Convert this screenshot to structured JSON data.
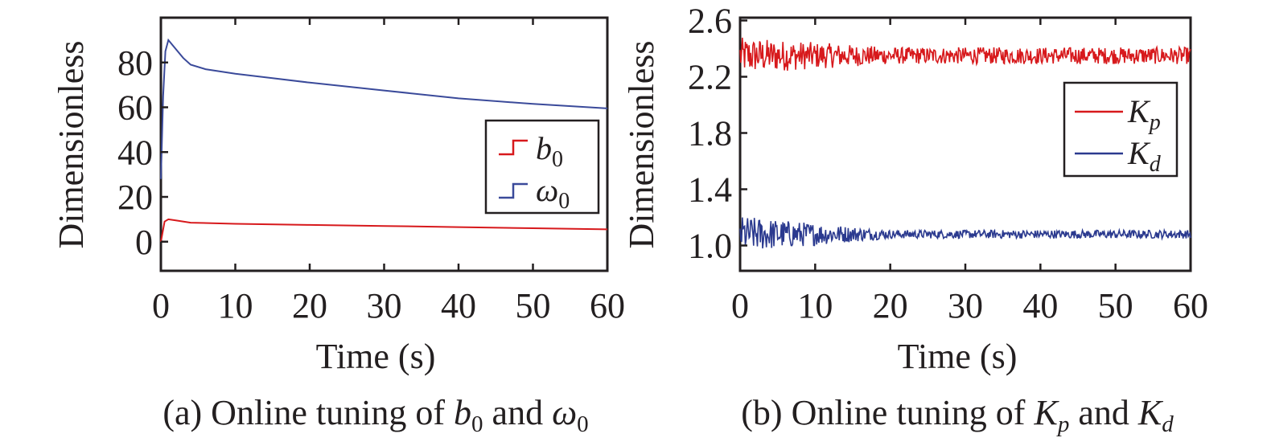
{
  "chart_data": [
    {
      "type": "line",
      "id": "a",
      "caption": {
        "prefix": "(a) Online tuning of ",
        "sym1": "b",
        "sub1": "0",
        "mid": " and ",
        "sym2": "ω",
        "sub2": "0"
      },
      "xlabel": "Time (s)",
      "ylabel": "Dimensionless",
      "xlim": [
        0,
        60
      ],
      "ylim": [
        -13,
        100
      ],
      "xticks": [
        0,
        10,
        20,
        30,
        40,
        50,
        60
      ],
      "yticks": [
        0,
        20,
        40,
        60,
        80
      ],
      "legend_position": "center-right",
      "series": [
        {
          "name": "b",
          "sub": "0",
          "color": "#d7191c",
          "x": [
            0,
            0.5,
            1,
            2,
            4,
            10,
            20,
            30,
            40,
            50,
            60
          ],
          "y": [
            0,
            9,
            10,
            9.5,
            8.5,
            8,
            7.5,
            7,
            6.5,
            6,
            5.5
          ]
        },
        {
          "name": "ω",
          "sub": "0",
          "color": "#3a4a9a",
          "x": [
            0,
            0.3,
            0.6,
            1,
            2,
            3,
            4,
            6,
            10,
            15,
            20,
            30,
            40,
            50,
            60
          ],
          "y": [
            28,
            65,
            85,
            90,
            86,
            82,
            79,
            77,
            75,
            73,
            71,
            67.5,
            64,
            61.5,
            59.5
          ]
        }
      ]
    },
    {
      "type": "line",
      "id": "b",
      "caption": {
        "prefix": "(b) Online tuning of ",
        "sym1": "K",
        "sub1": "p",
        "mid": " and ",
        "sym2": "K",
        "sub2": "d"
      },
      "xlabel": "Time (s)",
      "ylabel": "Dimensionless",
      "xlim": [
        0,
        60
      ],
      "ylim": [
        0.82,
        2.62
      ],
      "xticks": [
        0,
        10,
        20,
        30,
        40,
        50,
        60
      ],
      "yticks": [
        "1.0",
        "1.4",
        "1.8",
        "2.2",
        "2.6"
      ],
      "legend_position": "center-right",
      "series": [
        {
          "name": "K",
          "sub": "p",
          "color": "#d7191c",
          "mean": 2.35,
          "amp_start": 0.13,
          "amp_end": 0.06,
          "n": 600
        },
        {
          "name": "K",
          "sub": "d",
          "color": "#2b3a8f",
          "mean": 1.08,
          "amp_start": 0.13,
          "amp_end": 0.03,
          "n": 600
        }
      ]
    }
  ]
}
